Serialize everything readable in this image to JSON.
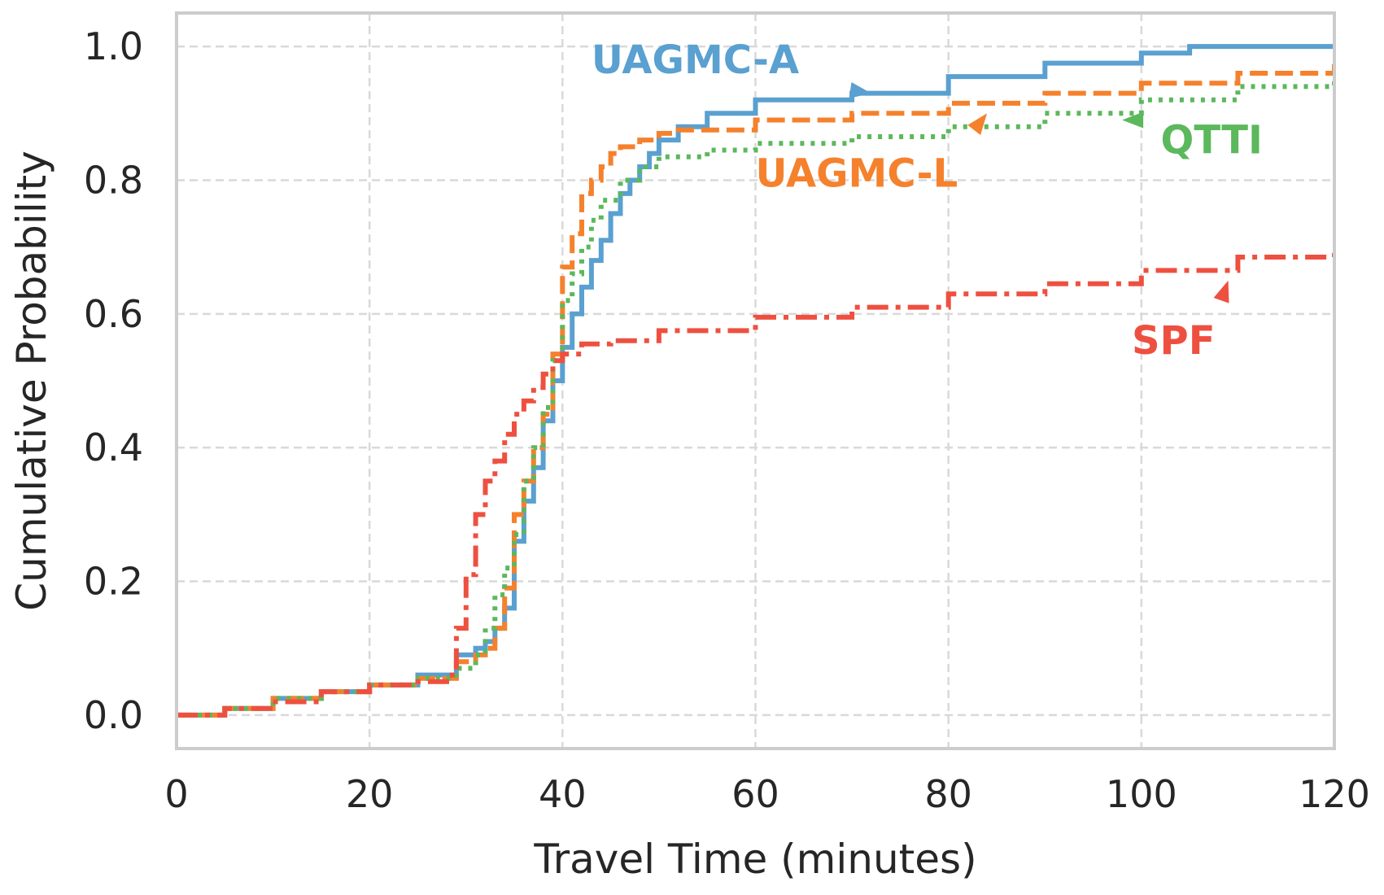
{
  "chart_data": {
    "type": "line",
    "step": true,
    "xlabel": "Travel Time (minutes)",
    "ylabel": "Cumulative Probability",
    "xlim": [
      0,
      120
    ],
    "ylim": [
      -0.05,
      1.05
    ],
    "xticks": [
      "0",
      "20",
      "40",
      "60",
      "80",
      "100",
      "120"
    ],
    "yticks": [
      "0.0",
      "0.2",
      "0.4",
      "0.6",
      "0.8",
      "1.0"
    ],
    "grid": true,
    "legend": "none",
    "series": [
      {
        "name": "UAGMC-A",
        "color": "#5aa0d0",
        "style": "solid",
        "x": [
          0,
          5,
          10,
          15,
          20,
          25,
          29,
          31,
          32,
          33,
          34,
          35,
          36,
          37,
          38,
          39,
          40,
          41,
          42,
          43,
          44,
          45,
          46,
          47,
          48,
          49,
          50,
          52,
          55,
          60,
          70,
          80,
          90,
          100,
          105,
          120
        ],
        "y": [
          0.0,
          0.01,
          0.025,
          0.035,
          0.045,
          0.06,
          0.09,
          0.1,
          0.11,
          0.13,
          0.16,
          0.26,
          0.32,
          0.37,
          0.44,
          0.5,
          0.55,
          0.6,
          0.64,
          0.68,
          0.71,
          0.75,
          0.78,
          0.8,
          0.82,
          0.84,
          0.86,
          0.88,
          0.9,
          0.92,
          0.93,
          0.955,
          0.975,
          0.99,
          1.0,
          1.0
        ]
      },
      {
        "name": "UAGMC-L",
        "color": "#f5812d",
        "style": "dashed",
        "x": [
          0,
          5,
          10,
          15,
          20,
          25,
          29,
          31,
          32,
          33,
          34,
          35,
          36,
          37,
          38,
          39,
          40,
          41,
          42,
          43,
          44,
          45,
          46,
          48,
          50,
          52,
          60,
          70,
          80,
          90,
          100,
          110,
          120
        ],
        "y": [
          0.0,
          0.01,
          0.025,
          0.035,
          0.045,
          0.055,
          0.08,
          0.09,
          0.1,
          0.13,
          0.19,
          0.3,
          0.35,
          0.4,
          0.45,
          0.54,
          0.67,
          0.72,
          0.78,
          0.8,
          0.82,
          0.84,
          0.85,
          0.86,
          0.87,
          0.875,
          0.89,
          0.9,
          0.915,
          0.93,
          0.945,
          0.96,
          0.975
        ]
      },
      {
        "name": "QTTI",
        "color": "#5cb85c",
        "style": "dotted",
        "x": [
          0,
          5,
          10,
          15,
          20,
          25,
          29,
          31,
          32,
          33,
          34,
          35,
          36,
          37,
          38,
          39,
          40,
          41,
          42,
          43,
          44,
          46,
          48,
          50,
          55,
          60,
          70,
          80,
          90,
          100,
          110,
          120
        ],
        "y": [
          0.0,
          0.01,
          0.025,
          0.035,
          0.045,
          0.055,
          0.07,
          0.09,
          0.13,
          0.18,
          0.22,
          0.27,
          0.35,
          0.4,
          0.46,
          0.53,
          0.62,
          0.66,
          0.7,
          0.74,
          0.77,
          0.8,
          0.82,
          0.835,
          0.845,
          0.855,
          0.865,
          0.88,
          0.9,
          0.92,
          0.94,
          0.96
        ]
      },
      {
        "name": "SPF",
        "color": "#ee5040",
        "style": "dashdot",
        "x": [
          0,
          5,
          10,
          15,
          20,
          25,
          28,
          29,
          30,
          31,
          32,
          33,
          34,
          35,
          36,
          37,
          38,
          39,
          40,
          42,
          45,
          50,
          60,
          70,
          80,
          90,
          100,
          110,
          120
        ],
        "y": [
          0.0,
          0.01,
          0.02,
          0.035,
          0.045,
          0.05,
          0.06,
          0.13,
          0.21,
          0.3,
          0.35,
          0.38,
          0.42,
          0.45,
          0.47,
          0.49,
          0.51,
          0.53,
          0.54,
          0.555,
          0.56,
          0.575,
          0.595,
          0.61,
          0.63,
          0.645,
          0.665,
          0.685,
          0.695
        ]
      }
    ],
    "annotations": [
      {
        "text": "UAGMC-A",
        "color": "#5aa0d0",
        "x": 43,
        "y": 0.96,
        "arrow_to": [
          72,
          0.93
        ]
      },
      {
        "text": "UAGMC-L",
        "color": "#f5812d",
        "x": 60,
        "y": 0.79,
        "arrow_to": [
          84,
          0.9
        ]
      },
      {
        "text": "QTTI",
        "color": "#5cb85c",
        "x": 102,
        "y": 0.84,
        "arrow_to": [
          98,
          0.89
        ]
      },
      {
        "text": "SPF",
        "color": "#ee5040",
        "x": 99,
        "y": 0.54,
        "arrow_to": [
          109,
          0.65
        ]
      }
    ]
  }
}
